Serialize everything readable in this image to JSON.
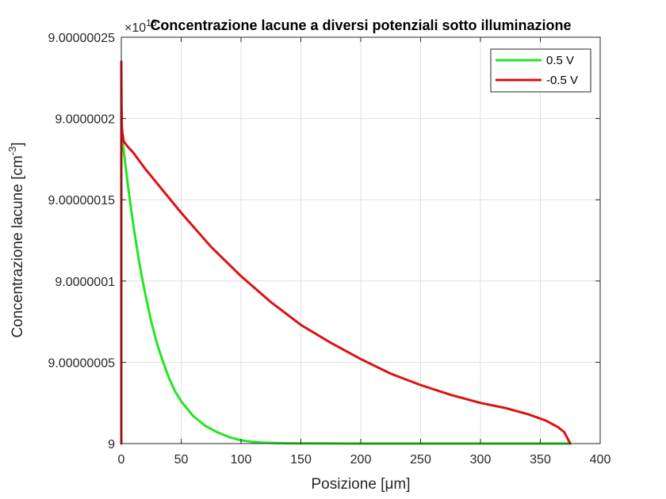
{
  "chart_data": {
    "type": "line",
    "title": "Concentrazione lacune a diversi potenziali sotto illuminazione",
    "xlabel": "Posizione [μm]",
    "ylabel": "Concentrazione lacune [cm-3]",
    "ylabel_main": "Concentrazione lacune [cm",
    "ylabel_sup": "-3",
    "ylabel_end": "]",
    "exponent_label": "×10",
    "exponent_sup": "16",
    "xlim": [
      0,
      400
    ],
    "ylim": [
      9,
      9.00000025
    ],
    "xticks": [
      0,
      50,
      100,
      150,
      200,
      250,
      300,
      350,
      400
    ],
    "xtick_labels": [
      "0",
      "50",
      "100",
      "150",
      "200",
      "250",
      "300",
      "350",
      "400"
    ],
    "yticks": [
      9,
      9.00000005,
      9.0000001,
      9.00000015,
      9.0000002,
      9.00000025
    ],
    "ytick_labels": [
      "9",
      "9.00000005",
      "9.0000001",
      "9.00000015",
      "9.0000002",
      "9.00000025"
    ],
    "grid": true,
    "legend_position": "top-right",
    "series": [
      {
        "name": "0.5 V",
        "color": "#22e622",
        "x": [
          0,
          0.3,
          0.8,
          1.5,
          3,
          5,
          8,
          12,
          16,
          20,
          25,
          30,
          35,
          40,
          45,
          50,
          60,
          70,
          80,
          90,
          100,
          110,
          120,
          140,
          160,
          200,
          250,
          300,
          350,
          375
        ],
        "y": [
          9.0000002,
          9.000000192,
          9.000000188,
          9.000000183,
          9.000000174,
          9.000000162,
          9.000000145,
          9.000000125,
          9.000000107,
          9.000000092,
          9.000000075,
          9.000000061,
          9.00000005,
          9.00000004,
          9.000000032,
          9.000000026,
          9.000000017,
          9.000000011,
          9.000000007,
          9.000000004,
          9.000000002,
          9.000000001,
          9.0000000005,
          9.0000000002,
          9.0000000001,
          9,
          9,
          9,
          9,
          9
        ]
      },
      {
        "name": "-0.5 V",
        "color": "#dd1111",
        "x": [
          0,
          0,
          0.2,
          0.5,
          1,
          2,
          5,
          10,
          20,
          30,
          50,
          75,
          100,
          125,
          150,
          175,
          200,
          225,
          250,
          275,
          300,
          320,
          340,
          355,
          365,
          370,
          375
        ],
        "y": [
          9,
          9.000000235,
          9.00000021,
          9.0000001945,
          9.000000191,
          9.000000186,
          9.000000183,
          9.000000179,
          9.000000169,
          9.00000016,
          9.000000142,
          9.000000121,
          9.000000103,
          9.000000087,
          9.000000073,
          9.000000062,
          9.000000052,
          9.000000043,
          9.000000036,
          9.00000003,
          9.000000025,
          9.000000022,
          9.000000018,
          9.000000014,
          9.00000001,
          9.000000007,
          9
        ]
      }
    ]
  }
}
